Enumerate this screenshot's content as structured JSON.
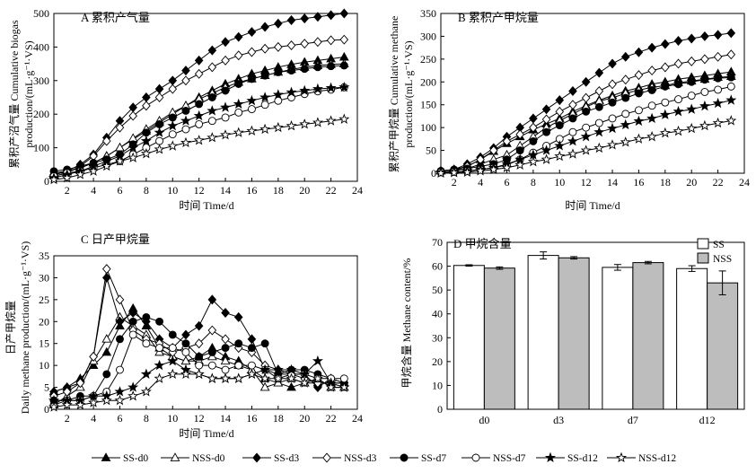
{
  "x_ticks": [
    2,
    4,
    6,
    8,
    10,
    12,
    14,
    16,
    18,
    20,
    22,
    24
  ],
  "x_label": "时间 Time/d",
  "panels": {
    "A": {
      "title": "A 累积产气量",
      "ylabel_line1": "累积产沼气量 Cumulative biogas",
      "ylabel_line2": "production/(mL·g⁻¹·VS)",
      "yticks": [
        0,
        100,
        200,
        300,
        400,
        500
      ]
    },
    "B": {
      "title": "B 累积产甲烷量",
      "ylabel_line1": "累积产甲烷量 Cumulative methane",
      "ylabel_line2": "production/(mL·g⁻¹·VS)",
      "yticks": [
        0,
        50,
        100,
        150,
        200,
        250,
        300,
        350
      ]
    },
    "C": {
      "title": "C 日产甲烷量",
      "ylabel_line1": "日产甲烷量",
      "ylabel_line2": "Daily methane production/(mL·g⁻¹·VS)",
      "yticks": [
        0,
        5,
        10,
        15,
        20,
        25,
        30,
        35
      ]
    },
    "D": {
      "title": "D 甲烷含量",
      "ylabel": "甲烷含量 Methane content/%",
      "yticks": [
        0,
        10,
        20,
        30,
        40,
        50,
        60,
        70
      ]
    }
  },
  "colors": {
    "line": "#000000",
    "ss_bar": "#ffffff",
    "nss_bar": "#bdbdbd"
  },
  "legend": [
    {
      "label": "SS-d0",
      "marker": "filled-triangle"
    },
    {
      "label": "NSS-d0",
      "marker": "open-triangle"
    },
    {
      "label": "SS-d3",
      "marker": "filled-diamond"
    },
    {
      "label": "NSS-d3",
      "marker": "open-diamond"
    },
    {
      "label": "SS-d7",
      "marker": "filled-circle"
    },
    {
      "label": "NSS-d7",
      "marker": "open-circle"
    },
    {
      "label": "SS-d12",
      "marker": "filled-star"
    },
    {
      "label": "NSS-d12",
      "marker": "open-star"
    }
  ],
  "chart_data": [
    {
      "panel": "A",
      "type": "line",
      "xlim": [
        1,
        24
      ],
      "ylim": [
        0,
        500
      ],
      "x": [
        1,
        2,
        3,
        4,
        5,
        6,
        7,
        8,
        9,
        10,
        11,
        12,
        13,
        14,
        15,
        16,
        17,
        18,
        19,
        20,
        21,
        22,
        23
      ],
      "series": [
        {
          "name": "SS-d0",
          "values": [
            25,
            30,
            40,
            55,
            75,
            100,
            125,
            150,
            175,
            200,
            225,
            250,
            270,
            290,
            305,
            320,
            330,
            340,
            348,
            355,
            360,
            365,
            370
          ]
        },
        {
          "name": "NSS-d0",
          "values": [
            20,
            28,
            40,
            55,
            75,
            100,
            128,
            155,
            180,
            205,
            225,
            245,
            262,
            280,
            295,
            305,
            315,
            325,
            333,
            340,
            345,
            348,
            350
          ]
        },
        {
          "name": "SS-d3",
          "values": [
            20,
            30,
            50,
            80,
            130,
            180,
            220,
            250,
            275,
            300,
            330,
            360,
            390,
            415,
            430,
            445,
            460,
            470,
            480,
            485,
            490,
            495,
            500
          ]
        },
        {
          "name": "NSS-d3",
          "values": [
            15,
            25,
            45,
            75,
            120,
            160,
            195,
            225,
            250,
            275,
            300,
            320,
            340,
            360,
            375,
            385,
            395,
            400,
            405,
            410,
            415,
            420,
            422
          ]
        },
        {
          "name": "SS-d7",
          "values": [
            30,
            35,
            45,
            55,
            65,
            80,
            110,
            145,
            170,
            190,
            210,
            230,
            250,
            270,
            290,
            305,
            315,
            325,
            330,
            335,
            340,
            343,
            345
          ]
        },
        {
          "name": "NSS-d7",
          "values": [
            15,
            25,
            30,
            40,
            50,
            60,
            80,
            100,
            120,
            140,
            155,
            170,
            180,
            190,
            205,
            215,
            228,
            240,
            250,
            260,
            268,
            273,
            280
          ]
        },
        {
          "name": "SS-d12",
          "values": [
            10,
            20,
            30,
            45,
            60,
            75,
            100,
            120,
            145,
            165,
            180,
            195,
            210,
            220,
            230,
            240,
            250,
            258,
            265,
            270,
            275,
            278,
            280
          ]
        },
        {
          "name": "NSS-d12",
          "values": [
            5,
            10,
            20,
            30,
            45,
            60,
            70,
            82,
            95,
            105,
            115,
            122,
            130,
            138,
            145,
            150,
            155,
            160,
            165,
            170,
            175,
            180,
            185
          ]
        }
      ]
    },
    {
      "panel": "B",
      "type": "line",
      "xlim": [
        1,
        24
      ],
      "ylim": [
        0,
        350
      ],
      "x": [
        1,
        2,
        3,
        4,
        5,
        6,
        7,
        8,
        9,
        10,
        11,
        12,
        13,
        14,
        15,
        16,
        17,
        18,
        19,
        20,
        21,
        22,
        23
      ],
      "series": [
        {
          "name": "SS-d0",
          "values": [
            5,
            8,
            15,
            30,
            48,
            65,
            80,
            95,
            108,
            120,
            135,
            148,
            160,
            170,
            180,
            187,
            195,
            200,
            206,
            210,
            214,
            218,
            222
          ]
        },
        {
          "name": "NSS-d0",
          "values": [
            5,
            6,
            10,
            20,
            30,
            40,
            60,
            80,
            100,
            115,
            130,
            145,
            158,
            165,
            175,
            182,
            188,
            192,
            198,
            202,
            206,
            210,
            212
          ]
        },
        {
          "name": "SS-d3",
          "values": [
            5,
            8,
            20,
            35,
            55,
            80,
            100,
            120,
            140,
            160,
            180,
            200,
            220,
            240,
            255,
            265,
            275,
            283,
            290,
            295,
            300,
            303,
            307
          ]
        },
        {
          "name": "NSS-d3",
          "values": [
            5,
            8,
            15,
            30,
            50,
            70,
            85,
            100,
            118,
            135,
            150,
            165,
            180,
            195,
            205,
            215,
            225,
            232,
            240,
            245,
            250,
            255,
            260
          ]
        },
        {
          "name": "SS-d7",
          "values": [
            5,
            8,
            10,
            15,
            20,
            30,
            50,
            70,
            90,
            105,
            120,
            135,
            145,
            155,
            165,
            175,
            182,
            190,
            195,
            200,
            205,
            208,
            210
          ]
        },
        {
          "name": "NSS-d7",
          "values": [
            2,
            3,
            5,
            8,
            12,
            18,
            30,
            45,
            60,
            75,
            90,
            100,
            110,
            120,
            130,
            138,
            148,
            155,
            162,
            170,
            178,
            183,
            190
          ]
        },
        {
          "name": "SS-d12",
          "values": [
            2,
            3,
            5,
            8,
            12,
            20,
            30,
            40,
            50,
            60,
            70,
            80,
            90,
            98,
            106,
            114,
            120,
            128,
            135,
            140,
            147,
            153,
            160
          ]
        },
        {
          "name": "NSS-d12",
          "values": [
            0,
            1,
            2,
            5,
            8,
            12,
            18,
            25,
            30,
            37,
            42,
            50,
            55,
            62,
            68,
            75,
            80,
            88,
            92,
            98,
            104,
            110,
            115
          ]
        }
      ]
    },
    {
      "panel": "C",
      "type": "line",
      "xlim": [
        1,
        24
      ],
      "ylim": [
        0,
        35
      ],
      "x": [
        1,
        2,
        3,
        4,
        5,
        6,
        7,
        8,
        9,
        10,
        11,
        12,
        13,
        14,
        15,
        16,
        17,
        18,
        19,
        20,
        21,
        22,
        23
      ],
      "series": [
        {
          "name": "SS-d0",
          "values": [
            4,
            5,
            7,
            10,
            13,
            19,
            23,
            19,
            14,
            12,
            11,
            12,
            14,
            12,
            11,
            9,
            7,
            6,
            5,
            6,
            6,
            6,
            6
          ]
        },
        {
          "name": "NSS-d0",
          "values": [
            1,
            3,
            5,
            11,
            16,
            21,
            19,
            17,
            13,
            12,
            11,
            11,
            12,
            11,
            10,
            9,
            5,
            6,
            7,
            6,
            7,
            5,
            5
          ]
        },
        {
          "name": "SS-d3",
          "values": [
            4,
            5,
            6,
            12,
            30,
            20,
            22,
            20,
            16,
            14,
            17,
            19,
            25,
            22,
            21,
            16,
            9,
            8,
            8,
            8,
            5,
            7,
            6
          ]
        },
        {
          "name": "NSS-d3",
          "values": [
            3,
            4,
            6,
            12,
            32,
            25,
            18,
            16,
            15,
            13,
            14,
            15,
            18,
            16,
            14,
            13,
            10,
            9,
            8,
            7,
            6,
            6,
            6
          ]
        },
        {
          "name": "SS-d7",
          "values": [
            2,
            2,
            3,
            3,
            8,
            16,
            20,
            21,
            20,
            17,
            15,
            12,
            13,
            14,
            15,
            14,
            15,
            8,
            9,
            9,
            8,
            7,
            6
          ]
        },
        {
          "name": "NSS-d7",
          "values": [
            1,
            2,
            2,
            3,
            4,
            9,
            17,
            15,
            14,
            14,
            13,
            10,
            10,
            9,
            10,
            10,
            9,
            7,
            8,
            8,
            7,
            7,
            7
          ]
        },
        {
          "name": "SS-d12",
          "values": [
            2,
            2,
            2,
            3,
            3,
            4,
            5,
            8,
            10,
            11,
            9,
            8,
            7,
            7,
            7,
            8,
            9,
            9,
            9,
            8,
            11,
            6,
            5
          ]
        },
        {
          "name": "NSS-d12",
          "values": [
            0.5,
            1,
            1,
            1.5,
            2,
            2,
            3,
            4,
            7,
            8,
            8,
            8,
            7,
            7,
            7,
            8,
            7,
            7,
            7,
            6,
            7,
            5,
            5
          ]
        }
      ]
    },
    {
      "panel": "D",
      "type": "bar",
      "ylim": [
        0,
        70
      ],
      "categories": [
        "d0",
        "d3",
        "d7",
        "d12"
      ],
      "series": [
        {
          "name": "SS",
          "values": [
            60.3,
            64.5,
            59.5,
            59.0
          ],
          "errors": [
            0.3,
            1.5,
            1.2,
            1.2
          ]
        },
        {
          "name": "NSS",
          "values": [
            59.2,
            63.5,
            61.5,
            53.0
          ],
          "errors": [
            0.5,
            0.5,
            0.5,
            5.0
          ]
        }
      ]
    }
  ]
}
